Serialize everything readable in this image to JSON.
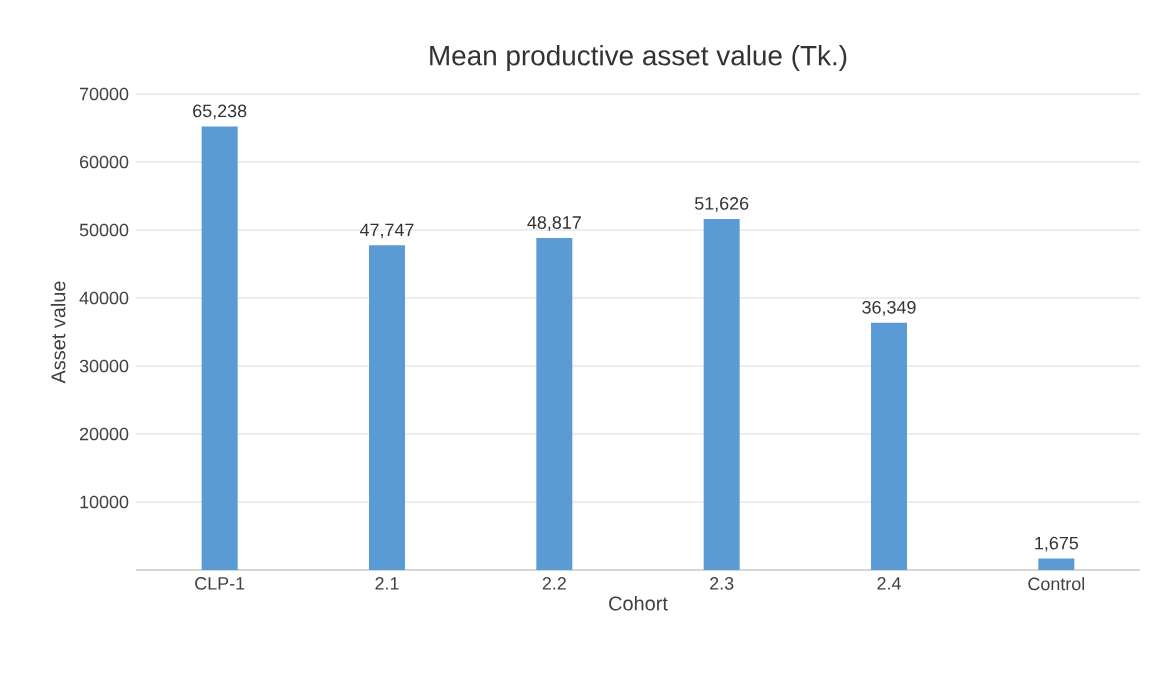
{
  "chart_data": {
    "type": "bar",
    "title": "Mean productive asset value (Tk.)",
    "xlabel": "Cohort",
    "ylabel": "Asset value",
    "categories": [
      "CLP-1",
      "2.1",
      "2.2",
      "2.3",
      "2.4",
      "Control"
    ],
    "values": [
      65238,
      47747,
      48817,
      51626,
      36349,
      1675
    ],
    "value_labels": [
      "65,238",
      "47,747",
      "48,817",
      "51,626",
      "36,349",
      "1,675"
    ],
    "color": "#5b9bd5",
    "ylim": [
      0,
      70000
    ],
    "yticks": [
      {
        "value": 0,
        "label": null
      },
      10000,
      20000,
      30000,
      40000,
      50000,
      60000,
      70000
    ],
    "grid": "y"
  }
}
